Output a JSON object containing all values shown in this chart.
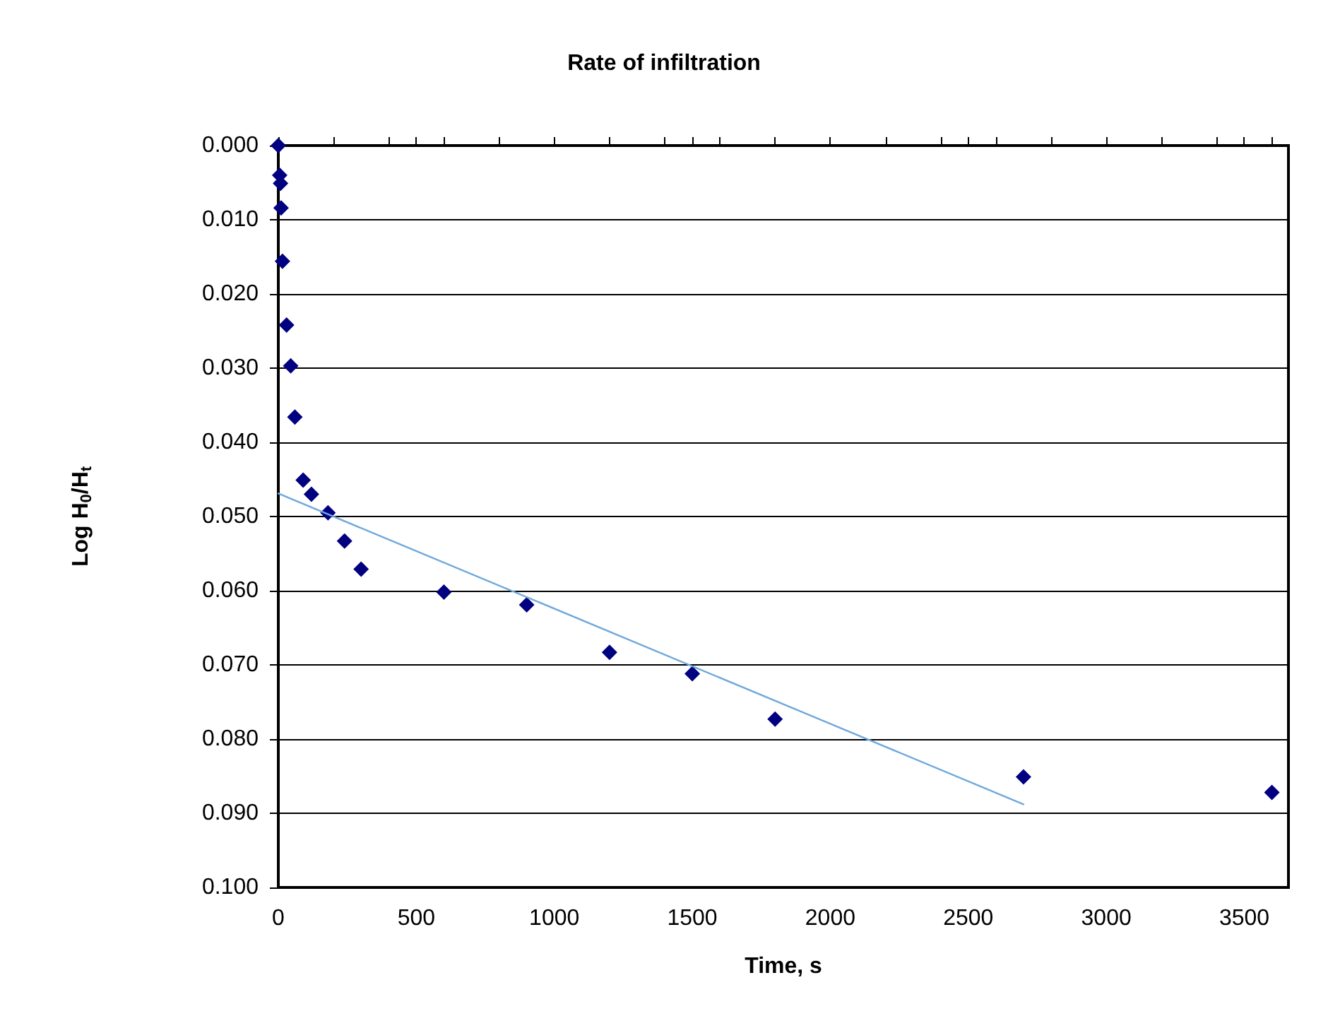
{
  "chart_data": {
    "type": "scatter",
    "title": "Rate of infiltration",
    "xlabel": "Time, s",
    "ylabel": "Log H$_{0}$/H$_{t}$",
    "series": [
      {
        "color": "#000080",
        "marker": "diamond",
        "x": [
          0,
          5,
          8,
          10,
          15,
          30,
          45,
          60,
          90,
          120,
          180,
          240,
          300,
          600,
          900,
          1200,
          1500,
          1800,
          2700,
          3600
        ],
        "values": [
          0.0,
          0.004,
          0.0051,
          0.0084,
          0.0156,
          0.0242,
          0.0297,
          0.0366,
          0.0451,
          0.047,
          0.0495,
          0.0533,
          0.0571,
          0.0602,
          0.0619,
          0.0683,
          0.0712,
          0.0773,
          0.0851,
          0.0872
        ]
      },
      {
        "type": "line",
        "color": "#6fa8dc",
        "marker": "none",
        "x": [
          0,
          2700
        ],
        "values": [
          0.0469,
          0.0888
        ]
      }
    ],
    "xlim": [
      0,
      3660
    ],
    "xticks": [
      0,
      500,
      1000,
      1500,
      2000,
      2500,
      3000,
      3500
    ],
    "ylim": [
      0.1,
      0.0
    ],
    "yticks": [
      {
        "value": 0.0,
        "label": "0.000"
      },
      {
        "value": 0.01,
        "label": "0.010"
      },
      {
        "value": 0.02,
        "label": "0.020"
      },
      {
        "value": 0.03,
        "label": "0.030"
      },
      {
        "value": 0.04,
        "label": "0.040"
      },
      {
        "value": 0.05,
        "label": "0.050"
      },
      {
        "value": 0.06,
        "label": "0.060"
      },
      {
        "value": 0.07,
        "label": "0.070"
      },
      {
        "value": 0.08,
        "label": "0.080"
      },
      {
        "value": 0.09,
        "label": "0.090"
      },
      {
        "value": 0.1,
        "label": "0.100"
      }
    ],
    "grid": "y"
  }
}
